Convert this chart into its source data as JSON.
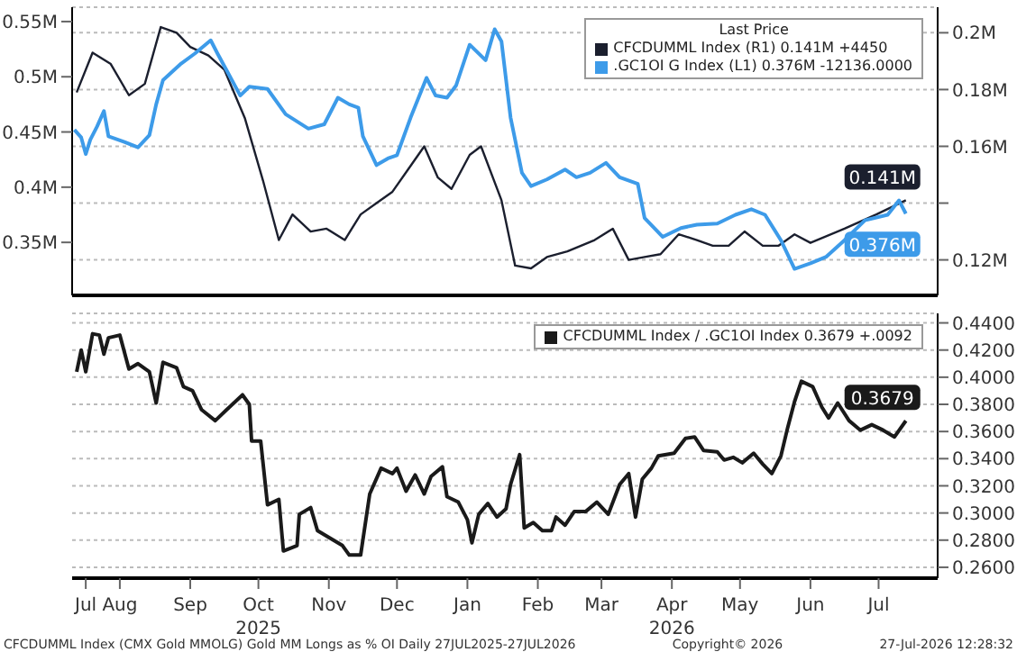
{
  "chart_data": [
    {
      "type": "line",
      "legend_title": "Last Price",
      "legend": "top right",
      "grid": "y",
      "tick_labels": "y",
      "xlim": [
        "2025-07-25",
        "2026-08-10"
      ],
      "xticks": [
        {
          "value": "2025-08-15",
          "label": null
        },
        {
          "value": "2025-10-15",
          "label": null
        },
        {
          "value": "2025-12-15",
          "label": null
        },
        {
          "value": "2026-02-15",
          "label": null
        },
        {
          "value": "2026-04-15",
          "label": null
        },
        {
          "value": "2026-06-15",
          "label": null
        }
      ],
      "ylim": [
        0.302,
        0.563
      ],
      "yticks": [
        {
          "value": 0.35,
          "label": "0.35M"
        },
        {
          "value": 0.4,
          "label": "0.4M"
        },
        {
          "value": 0.45,
          "label": "0.45M"
        },
        {
          "value": 0.5,
          "label": "0.5M"
        },
        {
          "value": 0.55,
          "label": "0.55M"
        }
      ],
      "y2lim": [
        0.1075,
        0.209
      ],
      "y2ticks": [
        {
          "value": 0.12,
          "label": "0.12M"
        },
        {
          "value": 0.14,
          "label": null
        },
        {
          "value": 0.16,
          "label": "0.16M"
        },
        {
          "value": 0.18,
          "label": "0.18M"
        },
        {
          "value": 0.2,
          "label": "0.2M"
        }
      ],
      "series": [
        {
          "name": "CFCDUMML Index (R1) 0.141M +4450",
          "color": "#1b1f2e",
          "axis": "y2",
          "x": [
            "2025-07-27",
            "2025-08-03",
            "2025-08-11",
            "2025-08-19",
            "2025-08-26",
            "2025-09-02",
            "2025-09-09",
            "2025-09-15",
            "2025-09-23",
            "2025-09-30",
            "2025-10-09",
            "2025-10-17",
            "2025-10-24",
            "2025-10-30",
            "2025-11-07",
            "2025-11-14",
            "2025-11-22",
            "2025-11-29",
            "2025-12-06",
            "2025-12-13",
            "2025-12-20",
            "2025-12-27",
            "2026-01-02",
            "2026-01-08",
            "2026-01-16",
            "2026-01-21",
            "2026-01-30",
            "2026-02-05",
            "2026-02-12",
            "2026-02-19",
            "2026-02-28",
            "2026-03-12",
            "2026-03-20",
            "2026-03-27",
            "2026-04-03",
            "2026-04-10",
            "2026-04-18",
            "2026-04-26",
            "2026-05-03",
            "2026-05-10",
            "2026-05-17",
            "2026-05-25",
            "2026-06-01",
            "2026-06-08",
            "2026-06-15",
            "2026-06-30",
            "2026-07-14",
            "2026-07-27"
          ],
          "values": [
            0.179,
            0.193,
            0.189,
            0.178,
            0.182,
            0.202,
            0.2,
            0.195,
            0.192,
            0.187,
            0.17,
            0.148,
            0.127,
            0.136,
            0.13,
            0.131,
            0.127,
            0.136,
            0.14,
            0.144,
            0.152,
            0.16,
            0.149,
            0.145,
            0.157,
            0.16,
            0.141,
            0.118,
            0.117,
            0.121,
            0.123,
            0.127,
            0.131,
            0.12,
            0.121,
            0.122,
            0.129,
            0.127,
            0.125,
            0.125,
            0.13,
            0.125,
            0.125,
            0.129,
            0.126,
            0.131,
            0.136,
            0.141
          ],
          "value_labels": [
            null,
            null,
            null,
            null,
            null,
            null,
            null,
            null,
            null,
            null,
            null,
            null,
            null,
            null,
            null,
            null,
            null,
            null,
            null,
            null,
            null,
            null,
            null,
            null,
            null,
            null,
            null,
            null,
            null,
            null,
            null,
            null,
            null,
            null,
            null,
            null,
            null,
            null,
            null,
            null,
            null,
            null,
            null,
            null,
            null,
            null,
            null,
            "0.141M"
          ]
        },
        {
          "name": ".GC1OI G Index (L1) 0.376M -12136.0000",
          "color": "#3d9be9",
          "x": [
            "2025-07-26",
            "2025-07-29",
            "2025-07-31",
            "2025-08-02",
            "2025-08-05",
            "2025-08-08",
            "2025-08-10",
            "2025-08-17",
            "2025-08-23",
            "2025-08-28",
            "2025-08-31",
            "2025-09-03",
            "2025-09-11",
            "2025-09-17",
            "2025-09-24",
            "2025-09-27",
            "2025-10-02",
            "2025-10-07",
            "2025-10-11",
            "2025-10-19",
            "2025-10-27",
            "2025-11-06",
            "2025-11-13",
            "2025-11-19",
            "2025-11-24",
            "2025-11-28",
            "2025-11-30",
            "2025-12-06",
            "2025-12-11",
            "2025-12-15",
            "2025-12-21",
            "2025-12-28",
            "2026-01-01",
            "2026-01-06",
            "2026-01-10",
            "2026-01-16",
            "2026-01-23",
            "2026-01-27",
            "2026-01-30",
            "2026-02-03",
            "2026-02-08",
            "2026-02-12",
            "2026-02-19",
            "2026-02-27",
            "2026-03-04",
            "2026-03-10",
            "2026-03-17",
            "2026-03-23",
            "2026-03-31",
            "2026-04-03",
            "2026-04-11",
            "2026-04-19",
            "2026-04-26",
            "2026-05-05",
            "2026-05-13",
            "2026-05-20",
            "2026-05-26",
            "2026-06-02",
            "2026-06-08",
            "2026-06-15",
            "2026-06-22",
            "2026-06-30",
            "2026-07-09",
            "2026-07-19",
            "2026-07-24",
            "2026-07-27"
          ],
          "values": [
            0.452,
            0.445,
            0.43,
            0.443,
            0.455,
            0.469,
            0.446,
            0.441,
            0.436,
            0.447,
            0.475,
            0.497,
            0.512,
            0.521,
            0.533,
            0.521,
            0.502,
            0.483,
            0.491,
            0.489,
            0.466,
            0.453,
            0.457,
            0.481,
            0.475,
            0.472,
            0.446,
            0.42,
            0.426,
            0.429,
            0.463,
            0.499,
            0.483,
            0.481,
            0.492,
            0.529,
            0.515,
            0.543,
            0.532,
            0.463,
            0.413,
            0.401,
            0.407,
            0.416,
            0.409,
            0.413,
            0.422,
            0.409,
            0.403,
            0.372,
            0.355,
            0.363,
            0.366,
            0.367,
            0.375,
            0.38,
            0.375,
            0.352,
            0.326,
            0.331,
            0.337,
            0.352,
            0.37,
            0.375,
            0.388,
            0.376
          ],
          "value_labels": [
            null,
            null,
            null,
            null,
            null,
            null,
            null,
            null,
            null,
            null,
            null,
            null,
            null,
            null,
            null,
            null,
            null,
            null,
            null,
            null,
            null,
            null,
            null,
            null,
            null,
            null,
            null,
            null,
            null,
            null,
            null,
            null,
            null,
            null,
            null,
            null,
            null,
            null,
            null,
            null,
            null,
            null,
            null,
            null,
            null,
            null,
            null,
            null,
            null,
            null,
            null,
            null,
            null,
            null,
            null,
            null,
            null,
            null,
            null,
            null,
            null,
            null,
            null,
            null,
            null,
            "0.376M"
          ]
        }
      ]
    },
    {
      "type": "line",
      "legend": "top right",
      "grid": "y",
      "xlim": [
        "2025-07-25",
        "2026-08-10"
      ],
      "xticks": [
        {
          "value": "2025-07-31",
          "label": "Jul"
        },
        {
          "value": "2025-08-15",
          "label": "Aug"
        },
        {
          "value": "2025-09-15",
          "label": "Sep"
        },
        {
          "value": "2025-10-15",
          "label": "Oct\n2025"
        },
        {
          "value": "2025-11-15",
          "label": "Nov"
        },
        {
          "value": "2025-12-15",
          "label": "Dec"
        },
        {
          "value": "2026-01-15",
          "label": "Jan"
        },
        {
          "value": "2026-02-15",
          "label": "Feb"
        },
        {
          "value": "2026-03-15",
          "label": "Mar"
        },
        {
          "value": "2026-04-15",
          "label": "Apr\n2026"
        },
        {
          "value": "2026-05-15",
          "label": "May"
        },
        {
          "value": "2026-06-15",
          "label": "Jun"
        },
        {
          "value": "2026-07-15",
          "label": "Jul"
        }
      ],
      "ylim": [
        0.252,
        0.447
      ],
      "yticks": [
        {
          "value": 0.26,
          "label": "0.2600"
        },
        {
          "value": 0.28,
          "label": "0.2800"
        },
        {
          "value": 0.3,
          "label": "0.3000"
        },
        {
          "value": 0.32,
          "label": "0.3200"
        },
        {
          "value": 0.34,
          "label": "0.3400"
        },
        {
          "value": 0.36,
          "label": "0.3600"
        },
        {
          "value": 0.38,
          "label": "0.3800"
        },
        {
          "value": 0.4,
          "label": "0.4000"
        },
        {
          "value": 0.42,
          "label": "0.4200"
        },
        {
          "value": 0.44,
          "label": "0.4400"
        }
      ],
      "annotations": [
        "CFCDUMML Index (CMX Gold MMOLG) Gold MM Longs as % OI Daily 27JUL2025-27JUL2026",
        "Copyright© 2026",
        "27-Jul-2026 12:28:32"
      ],
      "series": [
        {
          "name": "CFCDUMML Index / .GC1OI Index 0.3679 +.0092",
          "color": "#1a1a1a",
          "x": [
            "2025-07-27",
            "2025-07-29",
            "2025-07-31",
            "2025-08-03",
            "2025-08-06",
            "2025-08-08",
            "2025-08-10",
            "2025-08-15",
            "2025-08-19",
            "2025-08-23",
            "2025-08-28",
            "2025-08-31",
            "2025-09-03",
            "2025-09-09",
            "2025-09-12",
            "2025-09-16",
            "2025-09-20",
            "2025-09-26",
            "2025-10-01",
            "2025-10-08",
            "2025-10-11",
            "2025-10-12",
            "2025-10-16",
            "2025-10-19",
            "2025-10-24",
            "2025-10-26",
            "2025-11-01",
            "2025-11-02",
            "2025-11-07",
            "2025-11-10",
            "2025-11-17",
            "2025-11-21",
            "2025-11-24",
            "2025-11-29",
            "2025-12-03",
            "2025-12-08",
            "2025-12-13",
            "2025-12-15",
            "2025-12-19",
            "2025-12-23",
            "2025-12-27",
            "2025-12-30",
            "2026-01-04",
            "2026-01-06",
            "2026-01-11",
            "2026-01-15",
            "2026-01-17",
            "2026-01-20",
            "2026-01-24",
            "2026-01-28",
            "2026-02-01",
            "2026-02-03",
            "2026-02-07",
            "2026-02-09",
            "2026-02-13",
            "2026-02-17",
            "2026-02-21",
            "2026-02-23",
            "2026-02-27",
            "2026-03-03",
            "2026-03-08",
            "2026-03-13",
            "2026-03-18",
            "2026-03-23",
            "2026-03-27",
            "2026-03-30",
            "2026-04-02",
            "2026-04-06",
            "2026-04-09",
            "2026-04-16",
            "2026-04-21",
            "2026-04-25",
            "2026-04-29",
            "2026-05-05",
            "2026-05-08",
            "2026-05-12",
            "2026-05-16",
            "2026-05-21",
            "2026-05-25",
            "2026-05-29",
            "2026-06-02",
            "2026-06-05",
            "2026-06-08",
            "2026-06-11",
            "2026-06-16",
            "2026-06-20",
            "2026-06-23",
            "2026-06-27",
            "2026-07-02",
            "2026-07-07",
            "2026-07-12",
            "2026-07-17",
            "2026-07-22",
            "2026-07-27"
          ],
          "values": [
            0.404,
            0.42,
            0.404,
            0.432,
            0.431,
            0.417,
            0.429,
            0.431,
            0.406,
            0.41,
            0.404,
            0.381,
            0.411,
            0.407,
            0.393,
            0.39,
            0.376,
            0.368,
            0.376,
            0.387,
            0.38,
            0.353,
            0.353,
            0.306,
            0.31,
            0.272,
            0.276,
            0.299,
            0.304,
            0.287,
            0.28,
            0.276,
            0.269,
            0.269,
            0.314,
            0.333,
            0.329,
            0.333,
            0.316,
            0.328,
            0.314,
            0.327,
            0.334,
            0.312,
            0.308,
            0.295,
            0.278,
            0.299,
            0.307,
            0.297,
            0.303,
            0.321,
            0.343,
            0.289,
            0.293,
            0.287,
            0.287,
            0.297,
            0.291,
            0.301,
            0.301,
            0.308,
            0.299,
            0.321,
            0.329,
            0.297,
            0.325,
            0.333,
            0.342,
            0.344,
            0.355,
            0.356,
            0.346,
            0.345,
            0.339,
            0.341,
            0.337,
            0.344,
            0.336,
            0.329,
            0.342,
            0.363,
            0.382,
            0.397,
            0.393,
            0.378,
            0.37,
            0.381,
            0.368,
            0.361,
            0.365,
            0.361,
            0.356,
            0.3679
          ],
          "value_labels": [
            null,
            null,
            null,
            null,
            null,
            null,
            null,
            null,
            null,
            null,
            null,
            null,
            null,
            null,
            null,
            null,
            null,
            null,
            null,
            null,
            null,
            null,
            null,
            null,
            null,
            null,
            null,
            null,
            null,
            null,
            null,
            null,
            null,
            null,
            null,
            null,
            null,
            null,
            null,
            null,
            null,
            null,
            null,
            null,
            null,
            null,
            null,
            null,
            null,
            null,
            null,
            null,
            null,
            null,
            null,
            null,
            null,
            null,
            null,
            null,
            null,
            null,
            null,
            null,
            null,
            null,
            null,
            null,
            null,
            null,
            null,
            null,
            null,
            null,
            null,
            null,
            null,
            null,
            null,
            null,
            null,
            null,
            null,
            null,
            null,
            null,
            null,
            null,
            null,
            null,
            null,
            null,
            null,
            "0.3679"
          ]
        }
      ]
    }
  ]
}
